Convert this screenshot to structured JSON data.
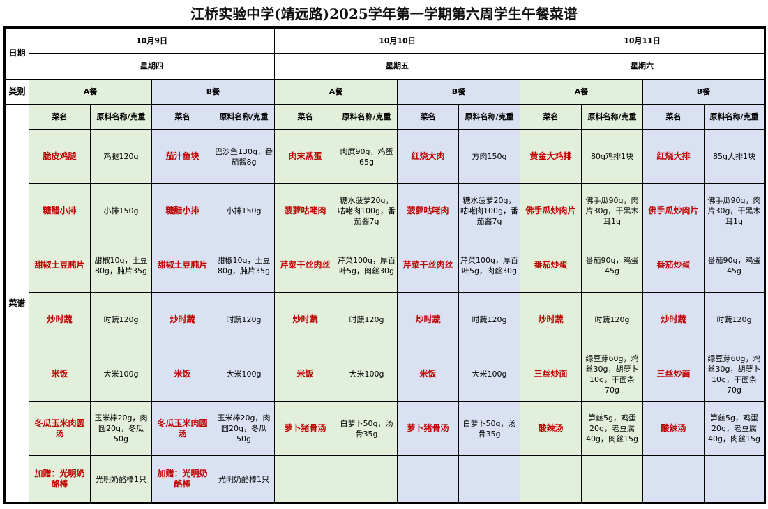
{
  "title": "江桥实验中学(靖远路)2025学年第一学期第六周学生午餐菜谱",
  "labels": {
    "date": "日期",
    "type": "类别",
    "menu": "菜谱",
    "dish_header": "菜名",
    "ingredient_header": "原料名称/克重"
  },
  "colors": {
    "meal_a": "#e2efda",
    "meal_b": "#d9e1f2",
    "dish_text": "#c00000"
  },
  "days": [
    {
      "date": "10月9日",
      "weekday": "星期四",
      "meals": [
        {
          "label": "A餐",
          "items": [
            {
              "name": "脆皮鸡腿",
              "ingredients": "鸡腿120g"
            },
            {
              "name": "糖醋小排",
              "ingredients": "小排150g"
            },
            {
              "name": "甜椒土豆肫片",
              "ingredients": "甜椒10g，土豆80g，肫片35g"
            },
            {
              "name": "炒时蔬",
              "ingredients": "时蔬120g"
            },
            {
              "name": "米饭",
              "ingredients": "大米100g"
            },
            {
              "name": "冬瓜玉米肉圆汤",
              "ingredients": "玉米棒20g，肉圆20g，冬瓜50g"
            },
            {
              "name": "加赠：光明奶酪棒",
              "ingredients": "光明奶酪棒1只"
            }
          ]
        },
        {
          "label": "B餐",
          "items": [
            {
              "name": "茄汁鱼块",
              "ingredients": "巴沙鱼130g，番茄酱8g"
            },
            {
              "name": "糖醋小排",
              "ingredients": "小排150g"
            },
            {
              "name": "甜椒土豆肫片",
              "ingredients": "甜椒10g，土豆80g，肫片35g"
            },
            {
              "name": "炒时蔬",
              "ingredients": "时蔬120g"
            },
            {
              "name": "米饭",
              "ingredients": "大米100g"
            },
            {
              "name": "冬瓜玉米肉圆汤",
              "ingredients": "玉米棒20g，肉圆20g，冬瓜50g"
            },
            {
              "name": "加赠：光明奶酪棒",
              "ingredients": "光明奶酪棒1只"
            }
          ]
        }
      ]
    },
    {
      "date": "10月10日",
      "weekday": "星期五",
      "meals": [
        {
          "label": "A餐",
          "items": [
            {
              "name": "肉末蒸蛋",
              "ingredients": "肉糜90g，鸡蛋65g"
            },
            {
              "name": "菠萝咕咾肉",
              "ingredients": "糖水菠萝20g，咕咾肉100g，番茄酱7g"
            },
            {
              "name": "芹菜干丝肉丝",
              "ingredients": "芹菜100g，厚百叶5g，肉丝30g"
            },
            {
              "name": "炒时蔬",
              "ingredients": "时蔬120g"
            },
            {
              "name": "米饭",
              "ingredients": "大米100g"
            },
            {
              "name": "萝卜猪骨汤",
              "ingredients": "白萝卜50g，汤骨35g"
            },
            {
              "name": "",
              "ingredients": ""
            }
          ]
        },
        {
          "label": "B餐",
          "items": [
            {
              "name": "红烧大肉",
              "ingredients": "方肉150g"
            },
            {
              "name": "菠萝咕咾肉",
              "ingredients": "糖水菠萝20g，咕咾肉100g，番茄酱7g"
            },
            {
              "name": "芹菜干丝肉丝",
              "ingredients": "芹菜100g，厚百叶5g，肉丝30g"
            },
            {
              "name": "炒时蔬",
              "ingredients": "时蔬120g"
            },
            {
              "name": "米饭",
              "ingredients": "大米100g"
            },
            {
              "name": "萝卜猪骨汤",
              "ingredients": "白萝卜50g，汤骨35g"
            },
            {
              "name": "",
              "ingredients": ""
            }
          ]
        }
      ]
    },
    {
      "date": "10月11日",
      "weekday": "星期六",
      "meals": [
        {
          "label": "A餐",
          "items": [
            {
              "name": "黄金大鸡排",
              "ingredients": "80g鸡排1块"
            },
            {
              "name": "佛手瓜炒肉片",
              "ingredients": "佛手瓜90g，肉片30g，干黑木耳1g"
            },
            {
              "name": "番茄炒蛋",
              "ingredients": "番茄90g，鸡蛋45g"
            },
            {
              "name": "炒时蔬",
              "ingredients": "时蔬120g"
            },
            {
              "name": "三丝炒面",
              "ingredients": "绿豆芽60g，鸡丝30g，胡萝卜10g，干面条70g"
            },
            {
              "name": "酸辣汤",
              "ingredients": "笋丝5g，鸡蛋20g，老豆腐40g，肉丝15g"
            },
            {
              "name": "",
              "ingredients": ""
            }
          ]
        },
        {
          "label": "B餐",
          "items": [
            {
              "name": "红烧大排",
              "ingredients": "85g大排1块"
            },
            {
              "name": "佛手瓜炒肉片",
              "ingredients": "佛手瓜90g，肉片30g，干黑木耳1g"
            },
            {
              "name": "番茄炒蛋",
              "ingredients": "番茄90g，鸡蛋45g"
            },
            {
              "name": "炒时蔬",
              "ingredients": "时蔬120g"
            },
            {
              "name": "三丝炒面",
              "ingredients": "绿豆芽60g，鸡丝30g，胡萝卜10g，干面条70g"
            },
            {
              "name": "酸辣汤",
              "ingredients": "笋丝5g，鸡蛋20g，老豆腐40g，肉丝15g"
            },
            {
              "name": "",
              "ingredients": ""
            }
          ]
        }
      ]
    }
  ]
}
